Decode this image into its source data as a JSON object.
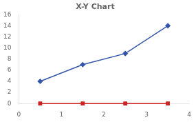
{
  "chart_data": {
    "type": "line",
    "title": "X-Y Chart",
    "x": [
      0.5,
      1.5,
      2.5,
      3.5
    ],
    "series": [
      {
        "values": [
          4,
          7,
          9,
          14
        ],
        "color": "#3355aa",
        "marker": "diamond"
      },
      {
        "values": [
          0,
          0,
          0,
          0
        ],
        "color": "#cc2222",
        "marker": "square"
      }
    ],
    "xlim": [
      0,
      4
    ],
    "xticks": [
      0,
      1,
      2,
      3,
      4
    ],
    "ylim": [
      0,
      16
    ],
    "yticks": [
      0,
      2,
      4,
      6,
      8,
      10,
      12,
      14,
      16
    ],
    "grid": false
  }
}
